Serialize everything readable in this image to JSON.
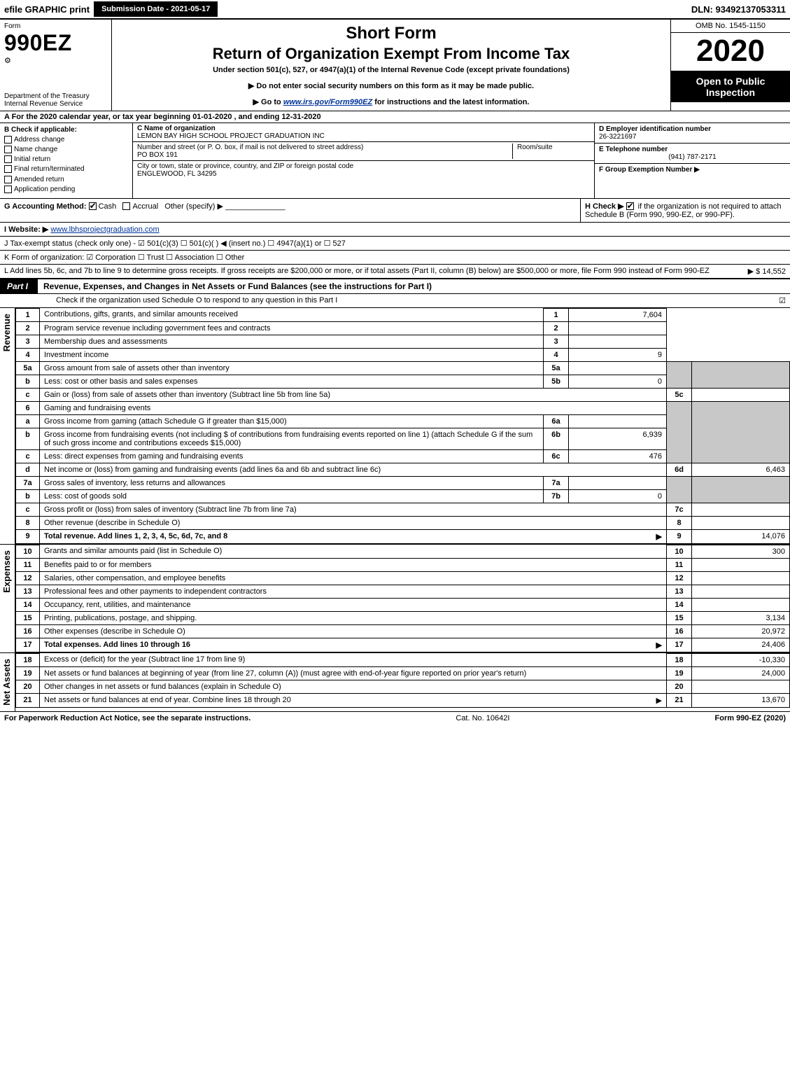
{
  "topbar": {
    "efile": "efile GRAPHIC print",
    "submission_btn": "Submission Date - 2021-05-17",
    "dln": "DLN: 93492137053311"
  },
  "header": {
    "form_word": "Form",
    "form_no": "990EZ",
    "dept": "Department of the Treasury",
    "irs": "Internal Revenue Service",
    "title1": "Short Form",
    "title2": "Return of Organization Exempt From Income Tax",
    "sub1": "Under section 501(c), 527, or 4947(a)(1) of the Internal Revenue Code (except private foundations)",
    "sub2": "▶ Do not enter social security numbers on this form as it may be made public.",
    "sub3_pre": "▶ Go to ",
    "sub3_link": "www.irs.gov/Form990EZ",
    "sub3_post": " for instructions and the latest information.",
    "omb": "OMB No. 1545-1150",
    "year": "2020",
    "inspect1": "Open to Public",
    "inspect2": "Inspection"
  },
  "lineA": "A For the 2020 calendar year, or tax year beginning 01-01-2020 , and ending 12-31-2020",
  "boxB": {
    "title": "B Check if applicable:",
    "opts": [
      "Address change",
      "Name change",
      "Initial return",
      "Final return/terminated",
      "Amended return",
      "Application pending"
    ]
  },
  "boxC": {
    "lbl_name": "C Name of organization",
    "org_name": "LEMON BAY HIGH SCHOOL PROJECT GRADUATION INC",
    "lbl_addr": "Number and street (or P. O. box, if mail is not delivered to street address)",
    "lbl_room": "Room/suite",
    "addr": "PO BOX 191",
    "lbl_city": "City or town, state or province, country, and ZIP or foreign postal code",
    "city": "ENGLEWOOD, FL  34295"
  },
  "boxD": {
    "lbl": "D Employer identification number",
    "val": "26-3221697"
  },
  "boxE": {
    "lbl": "E Telephone number",
    "val": "(941) 787-2171"
  },
  "boxF": {
    "lbl": "F Group Exemption Number  ▶"
  },
  "lineG": {
    "lbl": "G Accounting Method:",
    "cash": "Cash",
    "accrual": "Accrual",
    "other": "Other (specify) ▶"
  },
  "lineH": {
    "txt1": "H  Check ▶",
    "txt2": "if the organization is not required to attach Schedule B (Form 990, 990-EZ, or 990-PF)."
  },
  "lineI": {
    "lbl": "I Website: ▶",
    "val": "www.lbhsprojectgraduation.com"
  },
  "lineJ": "J Tax-exempt status (check only one) - ☑ 501(c)(3)  ☐ 501(c)(  ) ◀ (insert no.)  ☐ 4947(a)(1) or  ☐ 527",
  "lineK": "K Form of organization:   ☑ Corporation   ☐ Trust   ☐ Association   ☐ Other",
  "lineL": {
    "txt": "L Add lines 5b, 6c, and 7b to line 9 to determine gross receipts. If gross receipts are $200,000 or more, or if total assets (Part II, column (B) below) are $500,000 or more, file Form 990 instead of Form 990-EZ",
    "amt": "▶ $ 14,552"
  },
  "part1": {
    "tag": "Part I",
    "title": "Revenue, Expenses, and Changes in Net Assets or Fund Balances (see the instructions for Part I)",
    "sub": "Check if the organization used Schedule O to respond to any question in this Part I",
    "sub_check": "☑"
  },
  "sections": {
    "revenue_label": "Revenue",
    "expenses_label": "Expenses",
    "netassets_label": "Net Assets"
  },
  "rows": {
    "r1": {
      "n": "1",
      "d": "Contributions, gifts, grants, and similar amounts received",
      "a": "7,604"
    },
    "r2": {
      "n": "2",
      "d": "Program service revenue including government fees and contracts",
      "a": ""
    },
    "r3": {
      "n": "3",
      "d": "Membership dues and assessments",
      "a": ""
    },
    "r4": {
      "n": "4",
      "d": "Investment income",
      "a": "9"
    },
    "r5a": {
      "n": "5a",
      "d": "Gross amount from sale of assets other than inventory",
      "s": "5a",
      "sv": ""
    },
    "r5b": {
      "n": "b",
      "d": "Less: cost or other basis and sales expenses",
      "s": "5b",
      "sv": "0"
    },
    "r5c": {
      "n": "c",
      "d": "Gain or (loss) from sale of assets other than inventory (Subtract line 5b from line 5a)",
      "nc": "5c",
      "a": ""
    },
    "r6": {
      "n": "6",
      "d": "Gaming and fundraising events"
    },
    "r6a": {
      "n": "a",
      "d": "Gross income from gaming (attach Schedule G if greater than $15,000)",
      "s": "6a",
      "sv": ""
    },
    "r6b": {
      "n": "b",
      "d": "Gross income from fundraising events (not including $                of contributions from fundraising events reported on line 1) (attach Schedule G if the sum of such gross income and contributions exceeds $15,000)",
      "s": "6b",
      "sv": "6,939"
    },
    "r6c": {
      "n": "c",
      "d": "Less: direct expenses from gaming and fundraising events",
      "s": "6c",
      "sv": "476"
    },
    "r6d": {
      "n": "d",
      "d": "Net income or (loss) from gaming and fundraising events (add lines 6a and 6b and subtract line 6c)",
      "nc": "6d",
      "a": "6,463"
    },
    "r7a": {
      "n": "7a",
      "d": "Gross sales of inventory, less returns and allowances",
      "s": "7a",
      "sv": ""
    },
    "r7b": {
      "n": "b",
      "d": "Less: cost of goods sold",
      "s": "7b",
      "sv": "0"
    },
    "r7c": {
      "n": "c",
      "d": "Gross profit or (loss) from sales of inventory (Subtract line 7b from line 7a)",
      "nc": "7c",
      "a": ""
    },
    "r8": {
      "n": "8",
      "d": "Other revenue (describe in Schedule O)",
      "a": ""
    },
    "r9": {
      "n": "9",
      "d": "Total revenue. Add lines 1, 2, 3, 4, 5c, 6d, 7c, and 8",
      "a": "14,076",
      "arrow": "▶"
    },
    "r10": {
      "n": "10",
      "d": "Grants and similar amounts paid (list in Schedule O)",
      "a": "300"
    },
    "r11": {
      "n": "11",
      "d": "Benefits paid to or for members",
      "a": ""
    },
    "r12": {
      "n": "12",
      "d": "Salaries, other compensation, and employee benefits",
      "a": ""
    },
    "r13": {
      "n": "13",
      "d": "Professional fees and other payments to independent contractors",
      "a": ""
    },
    "r14": {
      "n": "14",
      "d": "Occupancy, rent, utilities, and maintenance",
      "a": ""
    },
    "r15": {
      "n": "15",
      "d": "Printing, publications, postage, and shipping.",
      "a": "3,134"
    },
    "r16": {
      "n": "16",
      "d": "Other expenses (describe in Schedule O)",
      "a": "20,972"
    },
    "r17": {
      "n": "17",
      "d": "Total expenses. Add lines 10 through 16",
      "a": "24,406",
      "arrow": "▶"
    },
    "r18": {
      "n": "18",
      "d": "Excess or (deficit) for the year (Subtract line 17 from line 9)",
      "a": "-10,330"
    },
    "r19": {
      "n": "19",
      "d": "Net assets or fund balances at beginning of year (from line 27, column (A)) (must agree with end-of-year figure reported on prior year's return)",
      "a": "24,000"
    },
    "r20": {
      "n": "20",
      "d": "Other changes in net assets or fund balances (explain in Schedule O)",
      "a": ""
    },
    "r21": {
      "n": "21",
      "d": "Net assets or fund balances at end of year. Combine lines 18 through 20",
      "a": "13,670",
      "arrow": "▶"
    }
  },
  "footer": {
    "left": "For Paperwork Reduction Act Notice, see the separate instructions.",
    "mid": "Cat. No. 10642I",
    "right": "Form 990-EZ (2020)"
  },
  "colors": {
    "bg": "#ffffff",
    "fg": "#000000",
    "shade": "#c8c8c8",
    "link": "#003399"
  }
}
